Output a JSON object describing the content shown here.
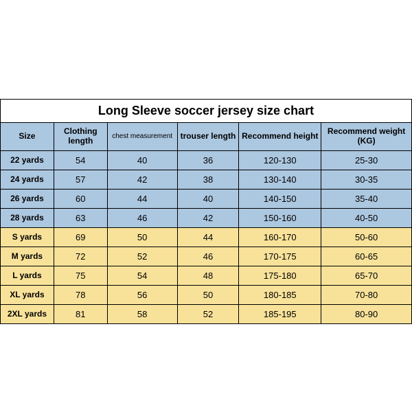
{
  "title": "Long Sleeve soccer jersey size chart",
  "colors": {
    "header_bg": "#acc7e0",
    "youth_bg": "#acc7e0",
    "adult_bg": "#f8e29a",
    "border": "#000000",
    "page_bg": "#ffffff",
    "text": "#000000"
  },
  "typography": {
    "title_fontsize_pt": 14,
    "header_fontsize_pt": 9,
    "cell_fontsize_pt": 10,
    "font_family": "Arial"
  },
  "columns": [
    {
      "key": "size",
      "label": "Size",
      "width_pct": 13,
      "align": "center",
      "header_fontsize_pt": 9,
      "header_bold": true
    },
    {
      "key": "clothing_length",
      "label": "Clothing length",
      "width_pct": 13,
      "align": "center",
      "header_fontsize_pt": 9,
      "header_bold": true
    },
    {
      "key": "chest",
      "label": "chest measurement",
      "width_pct": 17,
      "align": "center",
      "header_fontsize_pt": 8,
      "header_bold": false
    },
    {
      "key": "trouser_length",
      "label": "trouser length",
      "width_pct": 15,
      "align": "center",
      "header_fontsize_pt": 9,
      "header_bold": true
    },
    {
      "key": "rec_height",
      "label": "Recommend height",
      "width_pct": 20,
      "align": "center",
      "header_fontsize_pt": 9,
      "header_bold": true
    },
    {
      "key": "rec_weight",
      "label": "Recommend weight (KG)",
      "width_pct": 22,
      "align": "center",
      "header_fontsize_pt": 9,
      "header_bold": true
    }
  ],
  "rows": [
    {
      "group": "youth",
      "size": "22 yards",
      "clothing_length": "54",
      "chest": "40",
      "trouser_length": "36",
      "rec_height": "120-130",
      "rec_weight": "25-30"
    },
    {
      "group": "youth",
      "size": "24 yards",
      "clothing_length": "57",
      "chest": "42",
      "trouser_length": "38",
      "rec_height": "130-140",
      "rec_weight": "30-35"
    },
    {
      "group": "youth",
      "size": "26 yards",
      "clothing_length": "60",
      "chest": "44",
      "trouser_length": "40",
      "rec_height": "140-150",
      "rec_weight": "35-40"
    },
    {
      "group": "youth",
      "size": "28 yards",
      "clothing_length": "63",
      "chest": "46",
      "trouser_length": "42",
      "rec_height": "150-160",
      "rec_weight": "40-50"
    },
    {
      "group": "adult",
      "size": "S yards",
      "clothing_length": "69",
      "chest": "50",
      "trouser_length": "44",
      "rec_height": "160-170",
      "rec_weight": "50-60"
    },
    {
      "group": "adult",
      "size": "M yards",
      "clothing_length": "72",
      "chest": "52",
      "trouser_length": "46",
      "rec_height": "170-175",
      "rec_weight": "60-65"
    },
    {
      "group": "adult",
      "size": "L yards",
      "clothing_length": "75",
      "chest": "54",
      "trouser_length": "48",
      "rec_height": "175-180",
      "rec_weight": "65-70"
    },
    {
      "group": "adult",
      "size": "XL yards",
      "clothing_length": "78",
      "chest": "56",
      "trouser_length": "50",
      "rec_height": "180-185",
      "rec_weight": "70-80"
    },
    {
      "group": "adult",
      "size": "2XL yards",
      "clothing_length": "81",
      "chest": "58",
      "trouser_length": "52",
      "rec_height": "185-195",
      "rec_weight": "80-90"
    }
  ]
}
